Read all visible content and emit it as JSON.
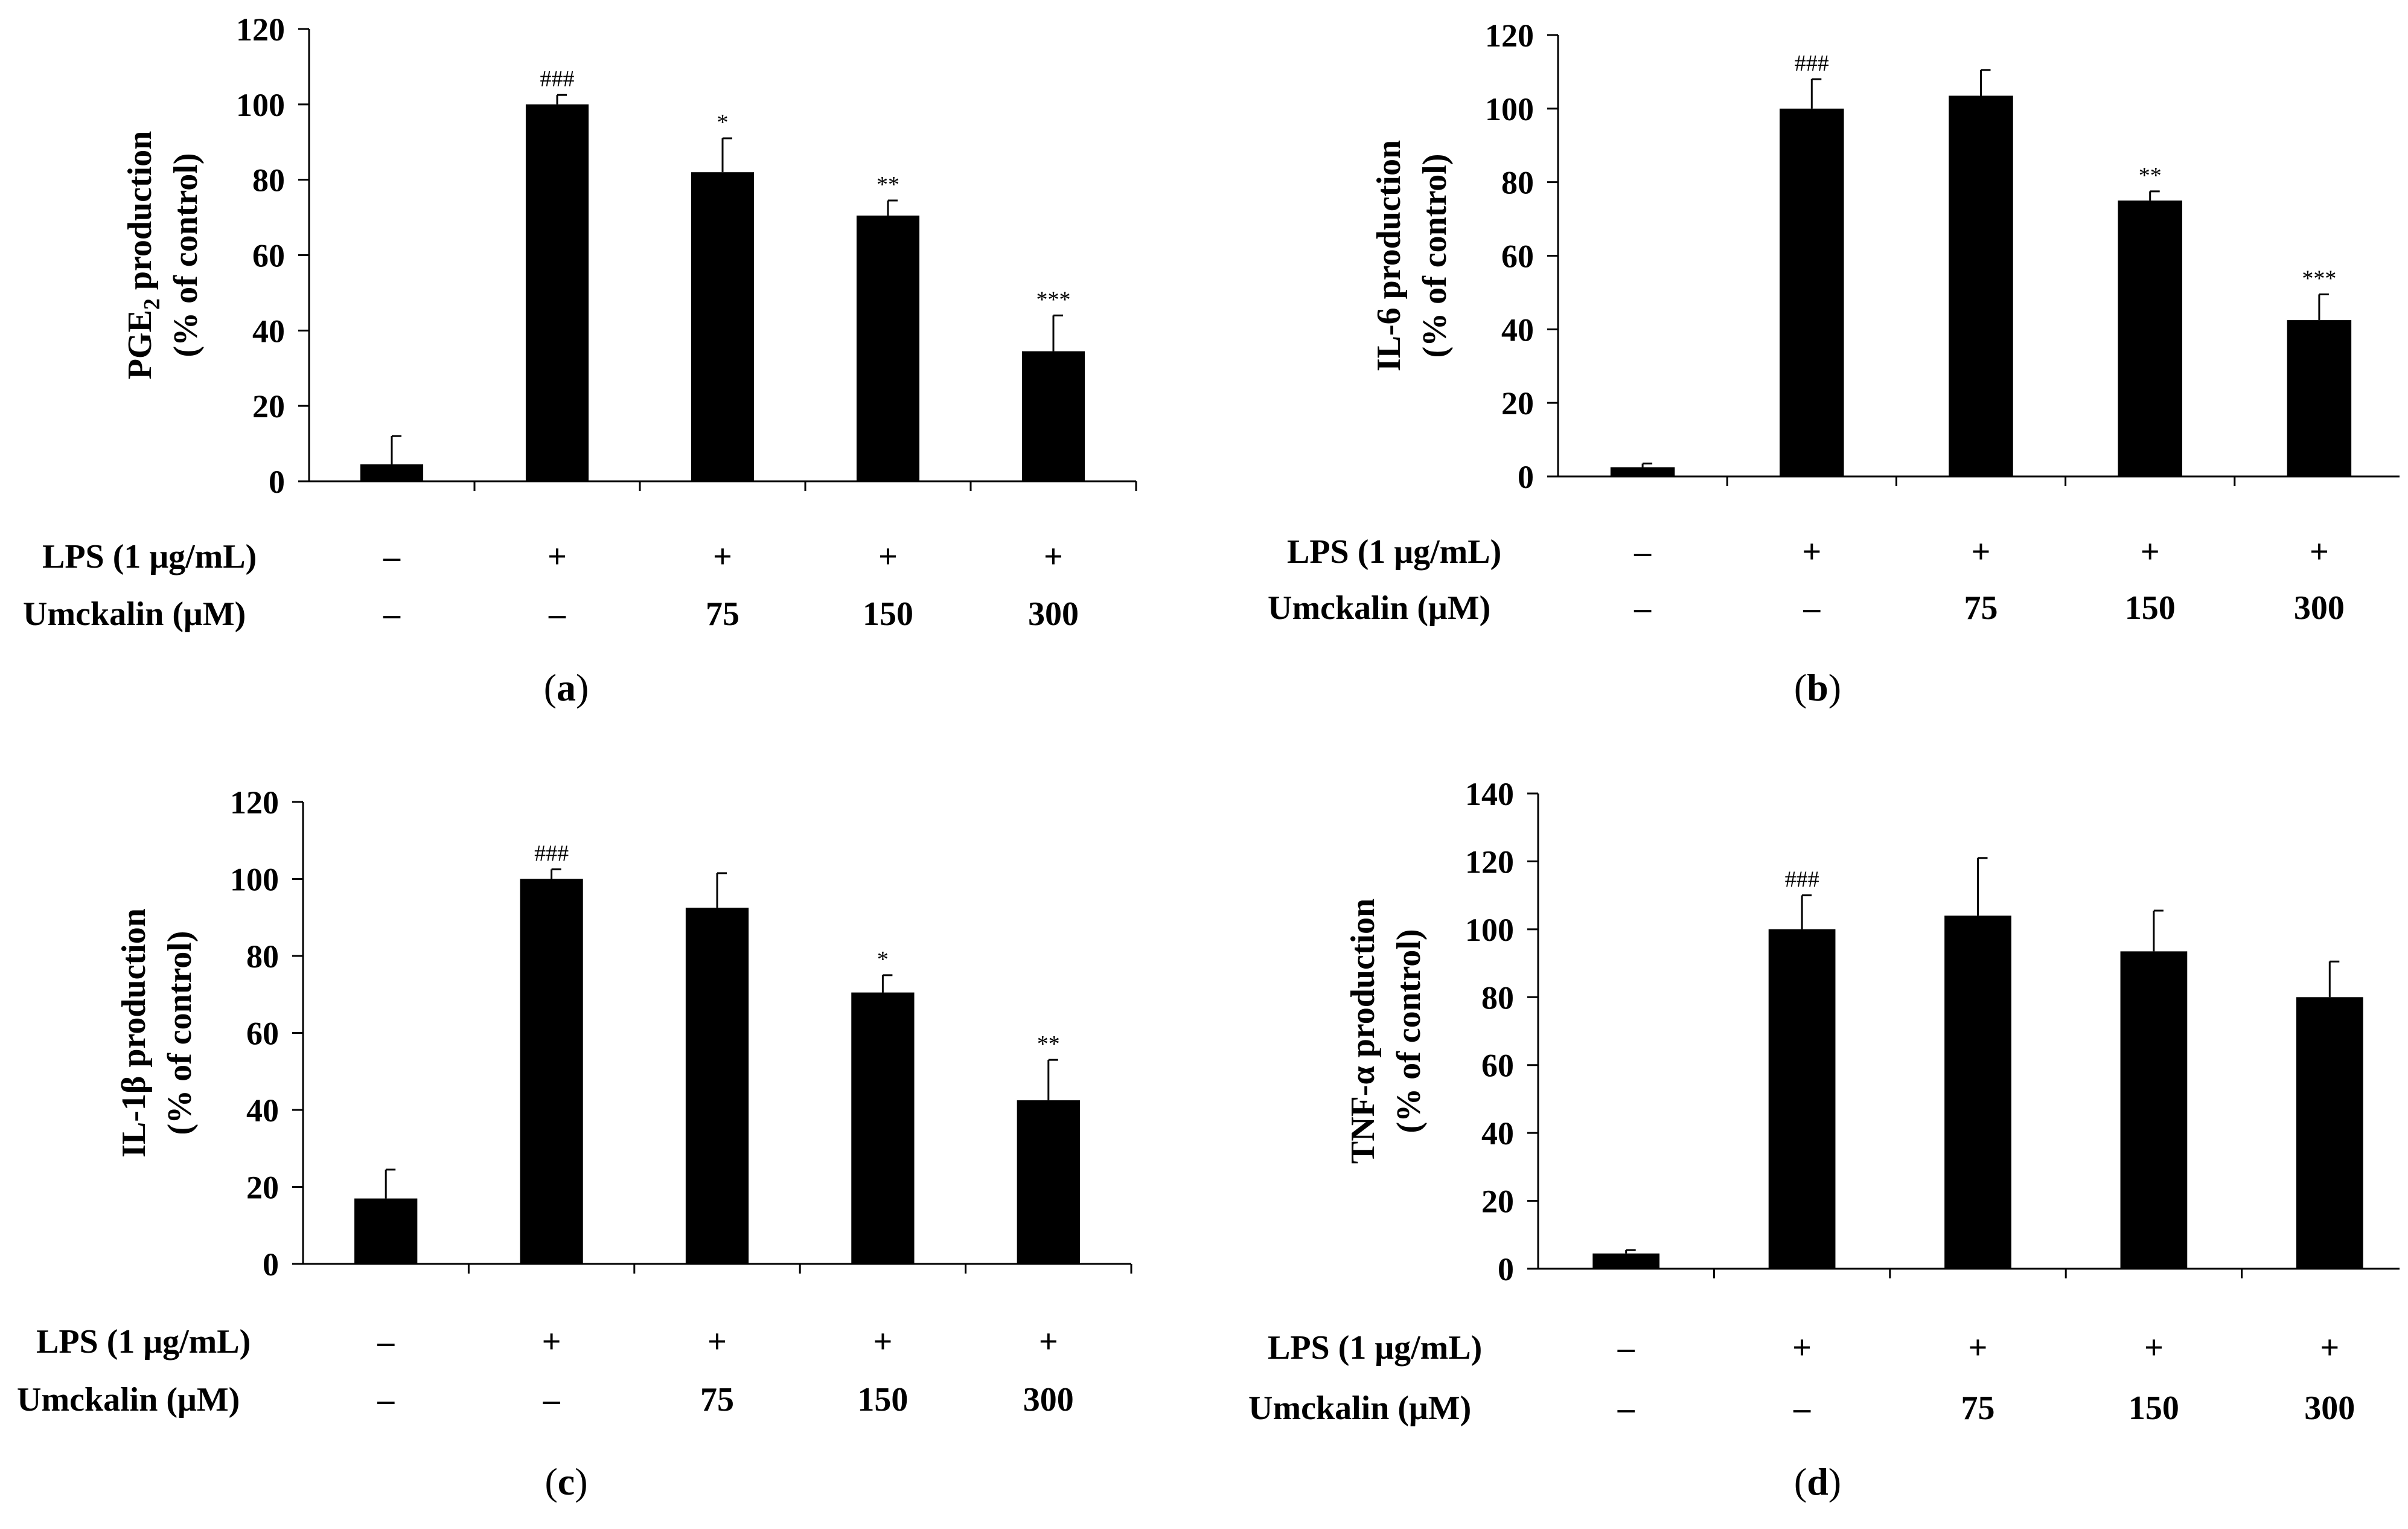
{
  "chart_data": [
    {
      "type": "bar",
      "panel_label": "a",
      "ylabel_main": "PGE",
      "ylabel_sub": "2",
      "ylabel_suffix": " production",
      "ylabel_line2": "(% of control)",
      "ylim": [
        0,
        120
      ],
      "yticks": [
        "0",
        "20",
        "40",
        "60",
        "80",
        "100",
        "120"
      ],
      "values": [
        4.5,
        100,
        82,
        70.5,
        34.5
      ],
      "errors": [
        7.5,
        2.5,
        9,
        4,
        9.5
      ],
      "annotations": [
        "",
        "###",
        "*",
        "**",
        "***"
      ],
      "lps_label": "LPS (1 μg/mL)",
      "lps": [
        "–",
        "+",
        "+",
        "+",
        "+"
      ],
      "umck_label": "Umckalin (μM)",
      "umck": [
        "–",
        "–",
        "75",
        "150",
        "300"
      ]
    },
    {
      "type": "bar",
      "panel_label": "b",
      "ylabel_main": "IL-6",
      "ylabel_sub": "",
      "ylabel_suffix": " production",
      "ylabel_line2": "(% of control)",
      "ylim": [
        0,
        120
      ],
      "yticks": [
        "0",
        "20",
        "40",
        "60",
        "80",
        "100",
        "120"
      ],
      "values": [
        2.5,
        100,
        103.5,
        75,
        42.5
      ],
      "errors": [
        1,
        8,
        7,
        2.5,
        7
      ],
      "annotations": [
        "",
        "###",
        "",
        "**",
        "***"
      ],
      "lps_label": "LPS (1 μg/mL)",
      "lps": [
        "–",
        "+",
        "+",
        "+",
        "+"
      ],
      "umck_label": "Umckalin (μM)",
      "umck": [
        "–",
        "–",
        "75",
        "150",
        "300"
      ]
    },
    {
      "type": "bar",
      "panel_label": "c",
      "ylabel_main": "IL-1β",
      "ylabel_sub": "",
      "ylabel_suffix": " production",
      "ylabel_line2": "(% of control)",
      "ylim": [
        0,
        120
      ],
      "yticks": [
        "0",
        "20",
        "40",
        "60",
        "80",
        "100",
        "120"
      ],
      "values": [
        17,
        100,
        92.5,
        70.5,
        42.5
      ],
      "errors": [
        7.5,
        2.5,
        9,
        4.5,
        10.5
      ],
      "annotations": [
        "",
        "###",
        "",
        "*",
        "**"
      ],
      "lps_label": "LPS (1 μg/mL)",
      "lps": [
        "–",
        "+",
        "+",
        "+",
        "+"
      ],
      "umck_label": "Umckalin (μM)",
      "umck": [
        "–",
        "–",
        "75",
        "150",
        "300"
      ]
    },
    {
      "type": "bar",
      "panel_label": "d",
      "ylabel_main": "TNF-α",
      "ylabel_sub": "",
      "ylabel_suffix": " production",
      "ylabel_line2": "(% of control)",
      "ylim": [
        0,
        140
      ],
      "yticks": [
        "0",
        "20",
        "40",
        "60",
        "80",
        "100",
        "120",
        "140"
      ],
      "values": [
        4.5,
        100,
        104,
        93.5,
        80
      ],
      "errors": [
        1,
        10,
        17,
        12,
        10.5
      ],
      "annotations": [
        "",
        "###",
        "",
        "",
        ""
      ],
      "lps_label": "LPS (1 μg/mL)",
      "lps": [
        "–",
        "+",
        "+",
        "+",
        "+"
      ],
      "umck_label": "Umckalin (μM)",
      "umck": [
        "–",
        "–",
        "75",
        "150",
        "300"
      ]
    }
  ]
}
